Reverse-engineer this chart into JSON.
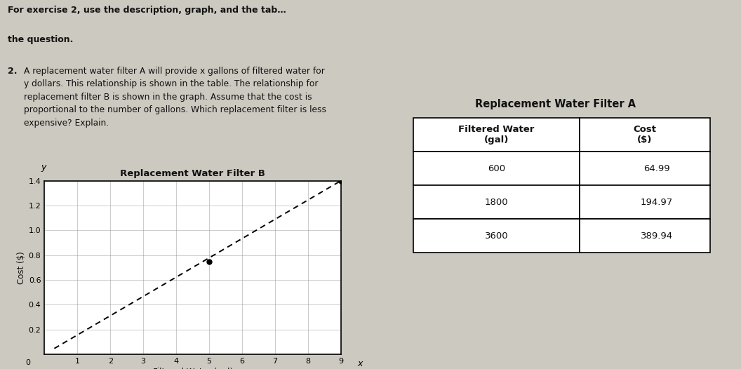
{
  "background_color": "#ccc9c0",
  "text_color": "#111111",
  "graph_title": "Replacement Water Filter B",
  "graph_xlabel": "Filtered Water (gal)",
  "graph_ylabel": "Cost ($)",
  "graph_xlim": [
    0,
    9
  ],
  "graph_ylim": [
    0,
    1.4
  ],
  "graph_xticks": [
    0,
    1,
    2,
    3,
    4,
    5,
    6,
    7,
    8,
    9
  ],
  "graph_yticks": [
    0.0,
    0.2,
    0.4,
    0.6,
    0.8,
    1.0,
    1.2,
    1.4
  ],
  "line_slope": 0.1556,
  "dot_points": [
    [
      5,
      0.75
    ],
    [
      9,
      1.4
    ]
  ],
  "table_title": "Replacement Water Filter A",
  "table_col1_header": "Filtered Water\n(gal)",
  "table_col2_header": "Cost\n($)",
  "table_data": [
    [
      "600",
      "64.99"
    ],
    [
      "1800",
      "194.97"
    ],
    [
      "3600",
      "389.94"
    ]
  ],
  "header_bold": "For exercise 2, use the description, graph, and the tab",
  "header_bold2": "the question.",
  "body_number": "2.",
  "body_line1": "  A replacement water filter A will provide x gallons of filtered water for",
  "body_line2": "  y dollars. This relationship is shown in the table. The relationship for",
  "body_line3": "  replacement filter B is shown in the graph. Assume that the cost is",
  "body_line4": "  proportional to the number of gallons. Which replacement filter is less",
  "body_line5": "  expensive? Explain."
}
